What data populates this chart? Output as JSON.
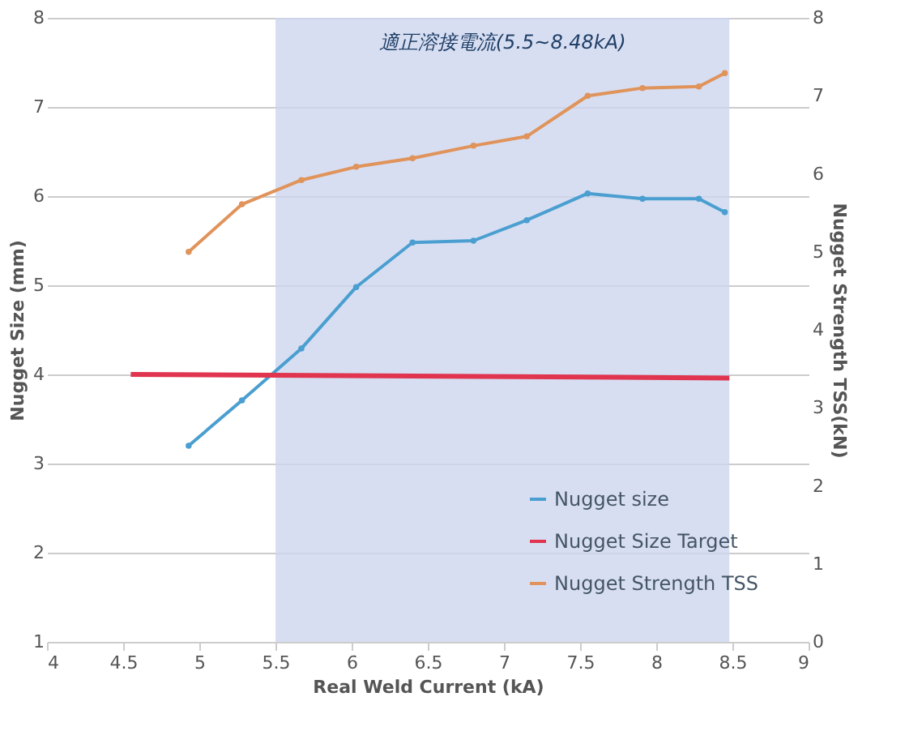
{
  "chart_data": {
    "type": "line",
    "xlabel": "Real Weld Current (kA)",
    "ylabel": "Nugget Size (mm)",
    "y2label": "Nugget Strength TSS(kN)",
    "xlim": [
      4,
      9
    ],
    "xticks": [
      4,
      4.5,
      5,
      5.5,
      6,
      6.5,
      7,
      7.5,
      8,
      8.5,
      9
    ],
    "ylim": [
      1,
      8
    ],
    "yticks": [
      1,
      2,
      3,
      4,
      5,
      6,
      7,
      8
    ],
    "y2lim": [
      0,
      8
    ],
    "y2ticks": [
      0,
      1,
      2,
      3,
      4,
      5,
      6,
      7,
      8
    ],
    "grid": "y",
    "legend": "bottom right",
    "bands": [
      {
        "axis": "x",
        "from": 5.5,
        "to": 8.48,
        "label": "適正溶接電流(5.5~8.48kA)",
        "color": "#cdd6ef"
      }
    ],
    "series": [
      {
        "name": "Nugget size",
        "color": "#4a9fd0",
        "marker": "circle",
        "x": [
          4.93,
          5.28,
          5.67,
          6.03,
          6.4,
          6.8,
          7.15,
          7.55,
          7.91,
          8.28,
          8.45
        ],
        "values": [
          3.2,
          3.71,
          4.29,
          4.98,
          5.48,
          5.5,
          5.73,
          6.03,
          5.97,
          5.97,
          5.82
        ]
      },
      {
        "name": "Nugget Size Target",
        "color": "#e0344f",
        "marker": "none",
        "x": [
          4.55,
          8.48
        ],
        "values": [
          4.0,
          3.96
        ]
      },
      {
        "name": "Nugget Strength TSS",
        "color": "#e0935a",
        "marker": "circle",
        "axis": "y2",
        "x": [
          4.93,
          5.28,
          5.67,
          6.03,
          6.4,
          6.8,
          7.15,
          7.55,
          7.91,
          8.28,
          8.45
        ],
        "values": [
          5.0,
          5.61,
          5.92,
          6.09,
          6.2,
          6.36,
          6.48,
          7.0,
          7.1,
          7.12,
          7.29
        ]
      }
    ]
  }
}
